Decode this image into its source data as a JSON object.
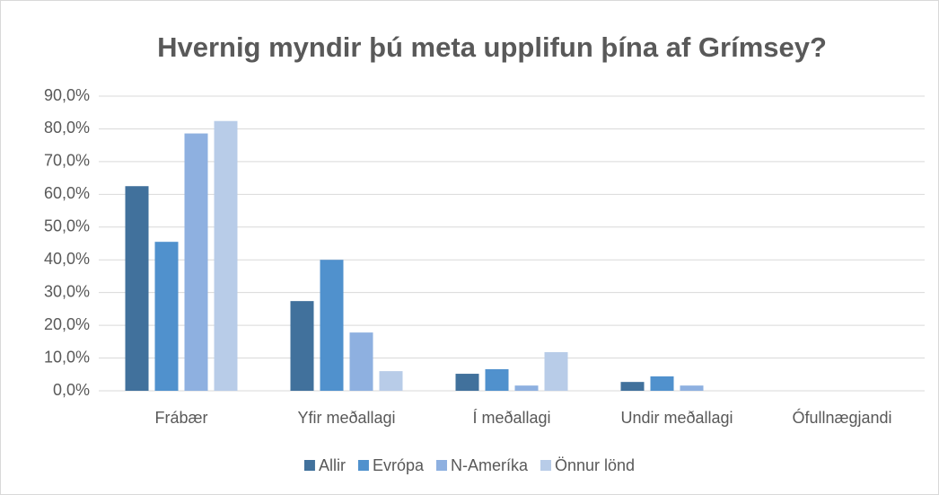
{
  "chart_data": {
    "type": "bar",
    "title": "Hvernig myndir þú meta upplifun þína af Grímsey?",
    "categories": [
      "Frábær",
      "Yfir meðallagi",
      "Í meðallagi",
      "Undir meðallagi",
      "Ófullnægjandi"
    ],
    "series": [
      {
        "name": "Allir",
        "color": "#41719c",
        "values": [
          62.5,
          27.4,
          5.2,
          2.7,
          0
        ]
      },
      {
        "name": "Evrópa",
        "color": "#5091cd",
        "values": [
          45.5,
          40.0,
          6.6,
          4.4,
          0
        ]
      },
      {
        "name": "N-Ameríka",
        "color": "#8eb0e0",
        "values": [
          78.6,
          17.8,
          1.6,
          1.6,
          0
        ]
      },
      {
        "name": "Önnur lönd",
        "color": "#b8cce8",
        "values": [
          82.4,
          6.0,
          11.8,
          0,
          0
        ]
      }
    ],
    "ylim": [
      0,
      90
    ],
    "yticks": [
      {
        "value": 0,
        "label": "0,0%"
      },
      {
        "value": 10,
        "label": "10,0%"
      },
      {
        "value": 20,
        "label": "20,0%"
      },
      {
        "value": 30,
        "label": "30,0%"
      },
      {
        "value": 40,
        "label": "40,0%"
      },
      {
        "value": 50,
        "label": "50,0%"
      },
      {
        "value": 60,
        "label": "60,0%"
      },
      {
        "value": 70,
        "label": "70,0%"
      },
      {
        "value": 80,
        "label": "80,0%"
      },
      {
        "value": 90,
        "label": "90,0%"
      }
    ],
    "grid": true,
    "legend": "bottom"
  }
}
